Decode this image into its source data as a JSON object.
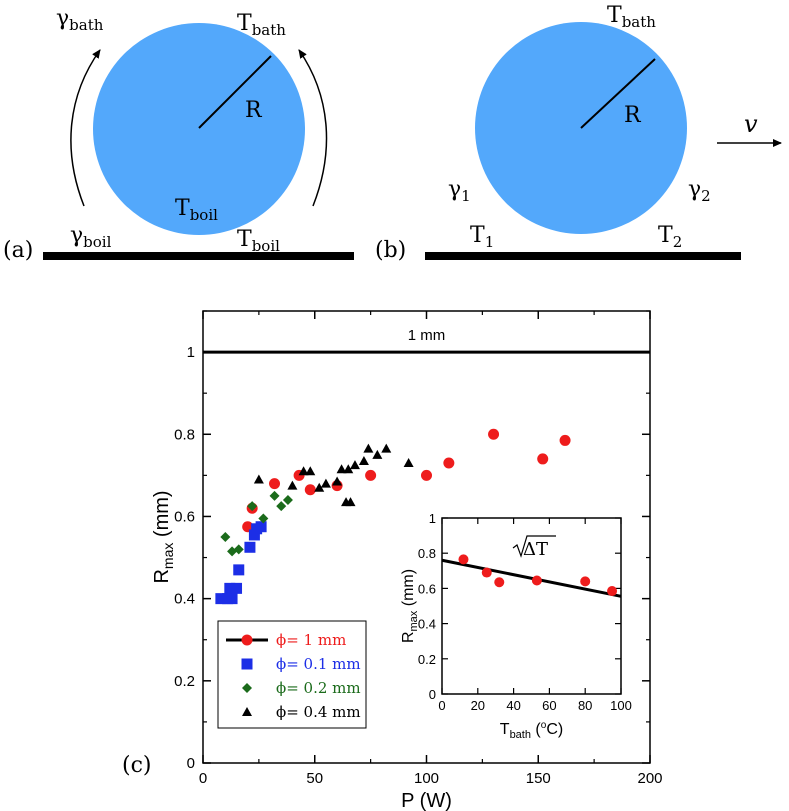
{
  "panel_a": {
    "label": "(a)",
    "gamma_bath": "γbath",
    "t_bath": "Tbath",
    "radius": "R",
    "t_boil_inner": "Tboil",
    "gamma_boil": "γboil",
    "t_boil_outer": "Tboil",
    "drop_color": "#53a8fb"
  },
  "panel_b": {
    "label": "(b)",
    "t_bath": "Tbath",
    "radius": "R",
    "velocity": "v",
    "gamma1": "γ1",
    "gamma2": "γ2",
    "t1": "T1",
    "t2": "T2"
  },
  "panel_c": {
    "label": "(c)",
    "reference_label": "1 mm",
    "chart_data": [
      {
        "type": "scatter",
        "xlabel": "P (W)",
        "ylabel": "R max (mm)",
        "xlim": [
          0,
          200
        ],
        "ylim": [
          0,
          1.1
        ],
        "x_ticks": [
          0,
          50,
          100,
          150,
          200
        ],
        "y_ticks": [
          0,
          0.2,
          0.4,
          0.6,
          0.8,
          1
        ],
        "reference_line": {
          "y": 1,
          "label": "1 mm"
        },
        "legend_position": "bottom-left",
        "series": [
          {
            "name": "ϕ= 1 mm",
            "marker": "circle",
            "color": "#ee1c1c",
            "text_color": "#ee1c1c",
            "points": [
              [
                20,
                0.575
              ],
              [
                22,
                0.62
              ],
              [
                32,
                0.68
              ],
              [
                43,
                0.7
              ],
              [
                48,
                0.665
              ],
              [
                60,
                0.675
              ],
              [
                75,
                0.7
              ],
              [
                100,
                0.7
              ],
              [
                110,
                0.73
              ],
              [
                130,
                0.8
              ],
              [
                152,
                0.74
              ],
              [
                162,
                0.785
              ]
            ]
          },
          {
            "name": "ϕ= 0.1 mm",
            "marker": "square",
            "color": "#1c2ee6",
            "text_color": "#1c2ee6",
            "points": [
              [
                8,
                0.4
              ],
              [
                11,
                0.4
              ],
              [
                12,
                0.425
              ],
              [
                13,
                0.4
              ],
              [
                15,
                0.425
              ],
              [
                16,
                0.47
              ],
              [
                21,
                0.525
              ],
              [
                23,
                0.555
              ],
              [
                24,
                0.57
              ],
              [
                26,
                0.575
              ]
            ]
          },
          {
            "name": "ϕ= 0.2 mm",
            "marker": "diamond",
            "color": "#1b6b1b",
            "text_color": "#1b6b1b",
            "points": [
              [
                10,
                0.55
              ],
              [
                13,
                0.515
              ],
              [
                16,
                0.52
              ],
              [
                22,
                0.625
              ],
              [
                27,
                0.595
              ],
              [
                32,
                0.65
              ],
              [
                35,
                0.625
              ],
              [
                38,
                0.64
              ]
            ]
          },
          {
            "name": "ϕ= 0.4 mm",
            "marker": "triangle",
            "color": "#000000",
            "text_color": "#000000",
            "points": [
              [
                25,
                0.69
              ],
              [
                40,
                0.675
              ],
              [
                45,
                0.71
              ],
              [
                48,
                0.71
              ],
              [
                52,
                0.67
              ],
              [
                55,
                0.68
              ],
              [
                60,
                0.685
              ],
              [
                62,
                0.715
              ],
              [
                64,
                0.635
              ],
              [
                65,
                0.715
              ],
              [
                66,
                0.635
              ],
              [
                68,
                0.725
              ],
              [
                72,
                0.735
              ],
              [
                74,
                0.765
              ],
              [
                78,
                0.75
              ],
              [
                82,
                0.765
              ],
              [
                92,
                0.73
              ]
            ]
          }
        ]
      },
      {
        "type": "scatter",
        "xlabel": "Tbath (°C)",
        "ylabel": "R max (mm)",
        "xlim": [
          0,
          100
        ],
        "ylim": [
          0,
          1
        ],
        "x_ticks": [
          0,
          20,
          40,
          60,
          80,
          100
        ],
        "y_ticks": [
          0,
          0.2,
          0.4,
          0.6,
          0.8,
          1
        ],
        "annotation": "√ΔT",
        "series": [
          {
            "marker": "circle",
            "color": "#ee1c1c",
            "points": [
              [
                12,
                0.765
              ],
              [
                25,
                0.69
              ],
              [
                32,
                0.635
              ],
              [
                53,
                0.645
              ],
              [
                80,
                0.64
              ],
              [
                95,
                0.585
              ]
            ]
          },
          {
            "marker": "line",
            "color": "#000000",
            "points": [
              [
                0,
                0.76
              ],
              [
                100,
                0.555
              ]
            ]
          }
        ]
      }
    ]
  }
}
